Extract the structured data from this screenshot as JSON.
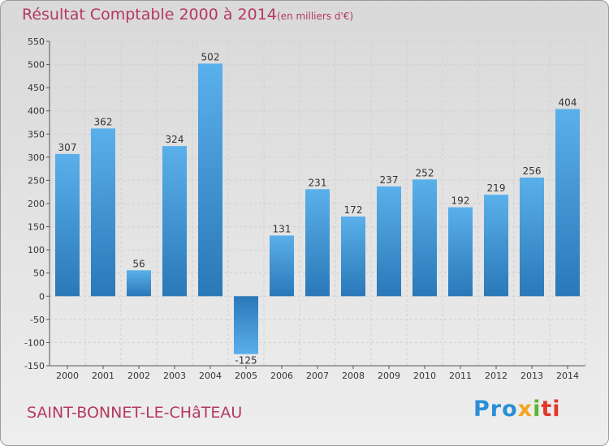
{
  "header": {
    "title": "Résultat Comptable 2000 à 2014",
    "subtitle": "(en milliers d'€)"
  },
  "footer": {
    "town": "SAINT-BONNET-LE-CHâTEAU",
    "logo_parts": [
      "Pro",
      "x",
      "i",
      "ti"
    ]
  },
  "colors": {
    "title": "#b5395f",
    "bar_light": "#5ab0ea",
    "bar_dark": "#2a78b8",
    "grid": "#cfcfcf",
    "axis": "#555555"
  },
  "chart_data": {
    "type": "bar",
    "categories": [
      "2000",
      "2001",
      "2002",
      "2003",
      "2004",
      "2005",
      "2006",
      "2007",
      "2008",
      "2009",
      "2010",
      "2011",
      "2012",
      "2013",
      "2014"
    ],
    "values": [
      307,
      362,
      56,
      324,
      502,
      -125,
      131,
      231,
      172,
      237,
      252,
      192,
      219,
      256,
      404
    ],
    "title": "Résultat Comptable 2000 à 2014",
    "subtitle": "(en milliers d'€)",
    "xlabel": "",
    "ylabel": "",
    "ylim": [
      -150,
      550
    ],
    "yticks": [
      -150,
      -100,
      -50,
      0,
      50,
      100,
      150,
      200,
      250,
      300,
      350,
      400,
      450,
      500,
      550
    ],
    "grid": true,
    "data_labels": true
  }
}
